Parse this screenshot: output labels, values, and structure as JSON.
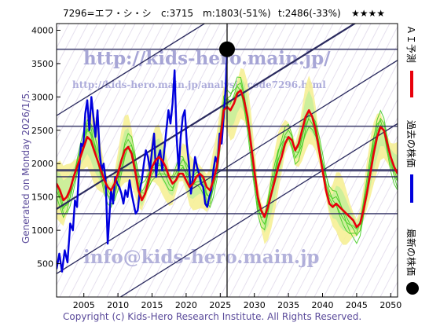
{
  "header": {
    "code_name": "7296=エフ・シ・シ",
    "current": "c:3715",
    "mid": "m:1803(-51%)",
    "target": "t:2486(-33%)",
    "stars": "★★★★"
  },
  "side_generated": "Generated on Monday 2026/1/5.",
  "watermarks": {
    "url_main": "http://kids-hero.main.jp/",
    "url_analysis": "http://kids-hero.main.jp/analysis/code7296.html",
    "email": "info@kids-hero.main.jp"
  },
  "legend": {
    "ai_forecast": "ＡＩ予測",
    "past_price": "過去の株価",
    "latest_price": "最新の株価"
  },
  "copyright": "Copyright (c) Kids-Hero Research Institute. All Rights Reserved.",
  "colors": {
    "forecast": "#e8000b",
    "price": "#0000dd",
    "channel": "#2a2a5e",
    "band_green": "#44cc22",
    "band_yellow": "#f6f096"
  },
  "chart_data": {
    "type": "line",
    "xlim": [
      2001,
      2051
    ],
    "ylim": [
      0,
      4100
    ],
    "xticks": [
      2005,
      2010,
      2015,
      2020,
      2025,
      2030,
      2035,
      2040,
      2045,
      2050
    ],
    "yticks": [
      500,
      1000,
      1500,
      2000,
      2500,
      3000,
      3500,
      4000
    ],
    "current_marker": {
      "x": 2026.0,
      "y": 3715
    },
    "vertical_line_x": 2026.0,
    "horizontal_levels": [
      3715,
      2560,
      1900,
      1803,
      1250
    ],
    "channel_lines": [
      {
        "x": [
          2001,
          2051
        ],
        "y": [
          1320,
          4500
        ]
      },
      {
        "x": [
          2001,
          2051
        ],
        "y": [
          2720,
          5900
        ]
      },
      {
        "x": [
          2001,
          2051
        ],
        "y": [
          350,
          3550
        ]
      },
      {
        "x": [
          2001,
          2051
        ],
        "y": [
          -600,
          2600
        ]
      }
    ],
    "series": [
      {
        "name": "過去の株価",
        "x": [
          2001.0,
          2001.4,
          2001.8,
          2002.2,
          2002.6,
          2003.0,
          2003.4,
          2003.7,
          2004.0,
          2004.3,
          2004.6,
          2004.9,
          2005.2,
          2005.5,
          2005.8,
          2006.1,
          2006.4,
          2006.7,
          2007.0,
          2007.3,
          2007.6,
          2007.9,
          2008.2,
          2008.5,
          2008.8,
          2009.0,
          2009.3,
          2009.6,
          2009.9,
          2010.2,
          2010.5,
          2010.8,
          2011.1,
          2011.4,
          2011.7,
          2012.0,
          2012.3,
          2012.6,
          2012.9,
          2013.2,
          2013.5,
          2013.8,
          2014.1,
          2014.4,
          2014.7,
          2015.0,
          2015.3,
          2015.6,
          2015.9,
          2016.2,
          2016.5,
          2016.8,
          2017.1,
          2017.4,
          2017.7,
          2018.0,
          2018.3,
          2018.6,
          2018.9,
          2019.2,
          2019.5,
          2019.8,
          2020.1,
          2020.4,
          2020.7,
          2021.0,
          2021.3,
          2021.6,
          2021.9,
          2022.2,
          2022.5,
          2022.8,
          2023.1,
          2023.4,
          2023.7,
          2024.0,
          2024.3,
          2024.6,
          2024.9,
          2025.2,
          2025.5,
          2025.8,
          2026.0
        ],
        "y": [
          420,
          650,
          380,
          700,
          520,
          1100,
          1000,
          1450,
          1350,
          1900,
          2300,
          2250,
          2750,
          2950,
          2500,
          3000,
          2700,
          2400,
          2800,
          2200,
          1900,
          2000,
          1750,
          800,
          1300,
          1600,
          1400,
          1800,
          1700,
          1650,
          1550,
          1400,
          1600,
          1500,
          1750,
          1550,
          1400,
          1250,
          1300,
          1600,
          1750,
          2000,
          2200,
          2100,
          1900,
          2200,
          2450,
          1800,
          2100,
          2200,
          1900,
          2200,
          2500,
          2800,
          2600,
          2900,
          3400,
          2400,
          1900,
          2400,
          2700,
          2800,
          2300,
          2000,
          1550,
          1800,
          2100,
          1950,
          1850,
          1700,
          1650,
          1400,
          1350,
          1500,
          1600,
          1900,
          2100,
          2000,
          2450,
          2300,
          2700,
          3150,
          3715
        ]
      },
      {
        "name": "ＡＩ予測",
        "x": [
          2001.0,
          2001.5,
          2002.0,
          2002.5,
          2003.0,
          2003.5,
          2004.0,
          2004.5,
          2005.0,
          2005.5,
          2006.0,
          2006.5,
          2007.0,
          2007.5,
          2008.0,
          2008.5,
          2009.0,
          2009.5,
          2010.0,
          2010.5,
          2011.0,
          2011.5,
          2012.0,
          2012.5,
          2013.0,
          2013.5,
          2014.0,
          2014.5,
          2015.0,
          2015.5,
          2016.0,
          2016.5,
          2017.0,
          2017.5,
          2018.0,
          2018.5,
          2019.0,
          2019.5,
          2020.0,
          2020.5,
          2021.0,
          2021.5,
          2022.0,
          2022.5,
          2023.0,
          2023.5,
          2024.0,
          2024.5,
          2025.0,
          2025.5,
          2026.0,
          2026.5,
          2027.0,
          2027.5,
          2028.0,
          2028.5,
          2029.0,
          2029.5,
          2030.0,
          2030.5,
          2031.0,
          2031.5,
          2032.0,
          2032.5,
          2033.0,
          2033.5,
          2034.0,
          2034.5,
          2035.0,
          2035.5,
          2036.0,
          2036.5,
          2037.0,
          2037.5,
          2038.0,
          2038.5,
          2039.0,
          2039.5,
          2040.0,
          2040.5,
          2041.0,
          2041.5,
          2042.0,
          2042.5,
          2043.0,
          2043.5,
          2044.0,
          2044.5,
          2045.0,
          2045.5,
          2046.0,
          2046.5,
          2047.0,
          2047.5,
          2048.0,
          2048.5,
          2049.0,
          2049.5,
          2050.0,
          2050.5,
          2051.0
        ],
        "y": [
          1700,
          1600,
          1450,
          1500,
          1620,
          1800,
          1950,
          2100,
          2250,
          2400,
          2350,
          2200,
          2050,
          1900,
          1750,
          1650,
          1600,
          1700,
          1850,
          2050,
          2200,
          2250,
          2150,
          1900,
          1600,
          1450,
          1550,
          1750,
          1950,
          2050,
          2100,
          2050,
          1950,
          1800,
          1700,
          1750,
          1850,
          1850,
          1750,
          1650,
          1700,
          1800,
          1850,
          1800,
          1650,
          1600,
          1750,
          1950,
          2350,
          2800,
          2850,
          2800,
          2900,
          3050,
          3100,
          2950,
          2700,
          2300,
          1900,
          1500,
          1300,
          1200,
          1350,
          1550,
          1750,
          1950,
          2100,
          2300,
          2400,
          2350,
          2200,
          2300,
          2500,
          2700,
          2800,
          2700,
          2500,
          2200,
          1900,
          1600,
          1400,
          1350,
          1400,
          1350,
          1300,
          1250,
          1200,
          1150,
          1050,
          1100,
          1300,
          1550,
          1850,
          2150,
          2400,
          2550,
          2500,
          2300,
          2100,
          1950,
          1850
        ]
      }
    ]
  }
}
